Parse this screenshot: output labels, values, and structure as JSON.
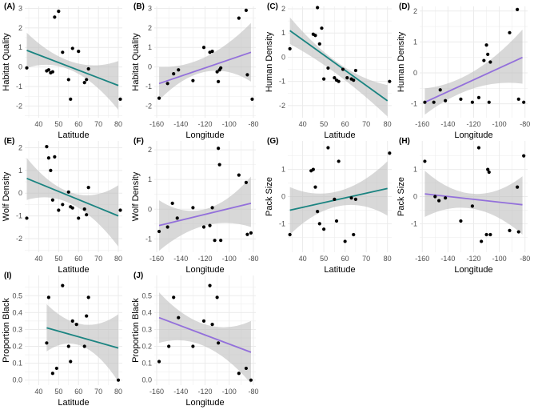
{
  "figure": {
    "band_color": "#bebebe",
    "point_color": "#000000",
    "grid_color": "#ebebeb"
  },
  "chart_data": [
    {
      "type": "scatter",
      "label": "(A)",
      "xlabel": "Latitude",
      "ylabel": "Habitat Quality",
      "xlim": [
        33,
        82
      ],
      "ylim": [
        -2.6,
        3.1
      ],
      "xticks": [
        40,
        50,
        60,
        70,
        80
      ],
      "xtick_labels": [
        "40",
        "50",
        "60",
        "70",
        "80"
      ],
      "yticks": [
        -2,
        -1,
        0,
        1,
        2,
        3
      ],
      "ytick_labels": [
        "-2",
        "-1",
        "0",
        "1",
        "2",
        "3"
      ],
      "line_color": "#1b8481",
      "fit": [
        [
          34,
          0.85
        ],
        [
          80,
          -0.95
        ]
      ],
      "band_start": [
        -0.05,
        1.75
      ],
      "band_mid": [
        -0.2,
        0.25
      ],
      "band_end": [
        -2.2,
        0.3
      ],
      "points": [
        [
          34,
          -0.05
        ],
        [
          44,
          -0.2
        ],
        [
          45,
          -0.15
        ],
        [
          46,
          -0.3
        ],
        [
          47,
          -0.25
        ],
        [
          48,
          2.55
        ],
        [
          50,
          2.85
        ],
        [
          52,
          0.75
        ],
        [
          55,
          -0.65
        ],
        [
          56,
          -1.65
        ],
        [
          57,
          0.95
        ],
        [
          60,
          0.8
        ],
        [
          63,
          -0.8
        ],
        [
          64,
          -0.65
        ],
        [
          65,
          -0.1
        ],
        [
          81,
          -1.65
        ]
      ]
    },
    {
      "type": "scatter",
      "label": "(B)",
      "xlabel": "Longitude",
      "ylabel": "Habitat Quality",
      "xlim": [
        -162,
        -78
      ],
      "ylim": [
        -2.6,
        3.1
      ],
      "xticks": [
        -160,
        -140,
        -120,
        -100,
        -80
      ],
      "xtick_labels": [
        "-160",
        "-140",
        "-120",
        "-100",
        "-80"
      ],
      "yticks": [
        -2,
        -1,
        0,
        1,
        2,
        3
      ],
      "ytick_labels": [
        "-2",
        "-1",
        "0",
        "1",
        "2",
        "3"
      ],
      "line_color": "#9370db",
      "fit": [
        [
          -158,
          -0.85
        ],
        [
          -82,
          0.75
        ]
      ],
      "band_start": [
        -1.7,
        0.0
      ],
      "band_mid": [
        -0.25,
        0.5
      ],
      "band_end": [
        -0.75,
        2.25
      ],
      "points": [
        [
          -158,
          -1.6
        ],
        [
          -151,
          -0.85
        ],
        [
          -146,
          -0.35
        ],
        [
          -142,
          -0.15
        ],
        [
          -130,
          -0.7
        ],
        [
          -121,
          1.0
        ],
        [
          -116,
          0.75
        ],
        [
          -114,
          0.8
        ],
        [
          -110,
          -0.25
        ],
        [
          -109,
          -0.75
        ],
        [
          -108,
          -0.15
        ],
        [
          -107,
          -0.05
        ],
        [
          -92,
          2.5
        ],
        [
          -86,
          2.9
        ],
        [
          -85,
          -0.4
        ],
        [
          -81,
          -1.65
        ]
      ]
    },
    {
      "type": "scatter",
      "label": "(C)",
      "xlabel": "Latitude",
      "ylabel": "Human Density",
      "xlim": [
        33,
        82
      ],
      "ylim": [
        -2.5,
        2.1
      ],
      "xticks": [
        40,
        50,
        60,
        70,
        80
      ],
      "xtick_labels": [
        "40",
        "50",
        "60",
        "70",
        "80"
      ],
      "yticks": [
        -2,
        -1,
        0,
        1,
        2
      ],
      "ytick_labels": [
        "-2",
        "-1",
        "0",
        "1",
        "2"
      ],
      "line_color": "#1b8481",
      "fit": [
        [
          34,
          1.1
        ],
        [
          80,
          -1.8
        ]
      ],
      "band_start": [
        0.55,
        1.65
      ],
      "band_mid": [
        -0.75,
        -0.25
      ],
      "band_end": [
        -2.45,
        -1.15
      ],
      "points": [
        [
          34,
          0.35
        ],
        [
          45,
          0.95
        ],
        [
          46,
          0.9
        ],
        [
          47,
          2.05
        ],
        [
          48,
          0.55
        ],
        [
          49,
          1.2
        ],
        [
          50,
          -0.9
        ],
        [
          52,
          -0.45
        ],
        [
          55,
          -0.85
        ],
        [
          56,
          -0.95
        ],
        [
          57,
          -1.0
        ],
        [
          59,
          -0.5
        ],
        [
          61,
          -0.85
        ],
        [
          63,
          -0.9
        ],
        [
          64,
          -0.95
        ],
        [
          65,
          -0.55
        ],
        [
          81,
          -1.0
        ]
      ]
    },
    {
      "type": "scatter",
      "label": "(D)",
      "xlabel": "Longitude",
      "ylabel": "Human Density",
      "xlim": [
        -162,
        -78
      ],
      "ylim": [
        -1.45,
        2.15
      ],
      "xticks": [
        -160,
        -140,
        -120,
        -100,
        -80
      ],
      "xtick_labels": [
        "-160",
        "-140",
        "-120",
        "-100",
        "-80"
      ],
      "yticks": [
        -1,
        0,
        1,
        2
      ],
      "ytick_labels": [
        "-1",
        "0",
        "1",
        "2"
      ],
      "line_color": "#9370db",
      "fit": [
        [
          -158,
          -0.95
        ],
        [
          -82,
          0.5
        ]
      ],
      "band_start": [
        -1.35,
        -0.5
      ],
      "band_mid": [
        -0.5,
        0.05
      ],
      "band_end": [
        -0.35,
        1.4
      ],
      "points": [
        [
          -158,
          -0.95
        ],
        [
          -151,
          -0.95
        ],
        [
          -146,
          -0.55
        ],
        [
          -142,
          -0.9
        ],
        [
          -130,
          -0.85
        ],
        [
          -121,
          -0.95
        ],
        [
          -116,
          -0.8
        ],
        [
          -112,
          0.4
        ],
        [
          -110,
          0.9
        ],
        [
          -109,
          0.6
        ],
        [
          -108,
          -0.95
        ],
        [
          -107,
          0.35
        ],
        [
          -92,
          1.3
        ],
        [
          -86,
          2.05
        ],
        [
          -85,
          -0.85
        ],
        [
          -81,
          -0.95
        ]
      ]
    },
    {
      "type": "scatter",
      "label": "(E)",
      "xlabel": "Latitude",
      "ylabel": "Wolf Density",
      "xlim": [
        33,
        82
      ],
      "ylim": [
        -2.6,
        2.3
      ],
      "xticks": [
        40,
        50,
        60,
        70,
        80
      ],
      "xtick_labels": [
        "40",
        "50",
        "60",
        "70",
        "80"
      ],
      "yticks": [
        -2,
        -1,
        0,
        1,
        2
      ],
      "ytick_labels": [
        "-2",
        "-1",
        "0",
        "1",
        "2"
      ],
      "line_color": "#1b8481",
      "fit": [
        [
          34,
          0.65
        ],
        [
          80,
          -1.0
        ]
      ],
      "band_start": [
        -0.3,
        1.55
      ],
      "band_mid": [
        -0.5,
        0.0
      ],
      "band_end": [
        -2.35,
        0.35
      ],
      "points": [
        [
          34,
          -1.1
        ],
        [
          44,
          2.05
        ],
        [
          45,
          1.55
        ],
        [
          46,
          1.0
        ],
        [
          47,
          -0.3
        ],
        [
          48,
          1.6
        ],
        [
          50,
          -0.75
        ],
        [
          52,
          -0.5
        ],
        [
          55,
          0.05
        ],
        [
          56,
          -0.6
        ],
        [
          57,
          -0.65
        ],
        [
          60,
          -1.1
        ],
        [
          63,
          -0.7
        ],
        [
          64,
          -0.95
        ],
        [
          65,
          0.25
        ],
        [
          81,
          -0.75
        ]
      ]
    },
    {
      "type": "scatter",
      "label": "(F)",
      "xlabel": "Longitude",
      "ylabel": "Wolf Density",
      "xlim": [
        -162,
        -78
      ],
      "ylim": [
        -1.45,
        2.3
      ],
      "xticks": [
        -160,
        -140,
        -120,
        -100,
        -80
      ],
      "xtick_labels": [
        "-160",
        "-140",
        "-120",
        "-100",
        "-80"
      ],
      "yticks": [
        -1,
        0,
        1,
        2
      ],
      "ytick_labels": [
        "-1",
        "0",
        "1",
        "2"
      ],
      "line_color": "#9370db",
      "fit": [
        [
          -158,
          -0.55
        ],
        [
          -82,
          0.2
        ]
      ],
      "band_start": [
        -1.4,
        0.3
      ],
      "band_mid": [
        -0.55,
        0.0
      ],
      "band_end": [
        -0.6,
        1.1
      ],
      "points": [
        [
          -158,
          -0.75
        ],
        [
          -151,
          -0.6
        ],
        [
          -147,
          0.2
        ],
        [
          -143,
          -0.3
        ],
        [
          -130,
          0.05
        ],
        [
          -121,
          -0.6
        ],
        [
          -116,
          -0.55
        ],
        [
          -114,
          0.05
        ],
        [
          -112,
          -1.05
        ],
        [
          -109,
          2.05
        ],
        [
          -108,
          1.5
        ],
        [
          -107,
          -1.05
        ],
        [
          -92,
          1.15
        ],
        [
          -86,
          0.9
        ],
        [
          -85,
          -0.85
        ],
        [
          -82,
          -0.8
        ]
      ]
    },
    {
      "type": "scatter",
      "label": "(G)",
      "xlabel": "Latitude",
      "ylabel": "Pack Size",
      "xlim": [
        33,
        82
      ],
      "ylim": [
        -2.05,
        2.05
      ],
      "xticks": [
        40,
        50,
        60,
        70,
        80
      ],
      "xtick_labels": [
        "40",
        "50",
        "60",
        "70",
        "80"
      ],
      "yticks": [
        -1,
        0,
        1
      ],
      "ytick_labels": [
        "-1",
        "0",
        "1"
      ],
      "line_color": "#1b8481",
      "fit": [
        [
          34,
          -0.5
        ],
        [
          80,
          0.3
        ]
      ],
      "band_start": [
        -1.4,
        0.35
      ],
      "band_mid": [
        -0.35,
        0.2
      ],
      "band_end": [
        -0.7,
        1.3
      ],
      "points": [
        [
          34,
          -1.4
        ],
        [
          44,
          0.95
        ],
        [
          45,
          1.0
        ],
        [
          46,
          0.35
        ],
        [
          47,
          -0.55
        ],
        [
          48,
          -1.0
        ],
        [
          50,
          -1.2
        ],
        [
          52,
          1.8
        ],
        [
          55,
          -0.1
        ],
        [
          56,
          -0.9
        ],
        [
          57,
          1.3
        ],
        [
          60,
          -1.65
        ],
        [
          63,
          -0.05
        ],
        [
          64,
          -1.4
        ],
        [
          65,
          -0.1
        ],
        [
          81,
          1.6
        ]
      ]
    },
    {
      "type": "scatter",
      "label": "(H)",
      "xlabel": "Longitude",
      "ylabel": "Pack Size",
      "xlim": [
        -162,
        -78
      ],
      "ylim": [
        -2.05,
        2.05
      ],
      "xticks": [
        -160,
        -140,
        -120,
        -100,
        -80
      ],
      "xtick_labels": [
        "-160",
        "-140",
        "-120",
        "-100",
        "-80"
      ],
      "yticks": [
        -1,
        0,
        1
      ],
      "ytick_labels": [
        "-1",
        "0",
        "1"
      ],
      "line_color": "#9370db",
      "fit": [
        [
          -158,
          0.1
        ],
        [
          -82,
          -0.3
        ]
      ],
      "band_start": [
        -0.75,
        0.95
      ],
      "band_mid": [
        -0.45,
        0.1
      ],
      "band_end": [
        -1.4,
        0.75
      ],
      "points": [
        [
          -158,
          1.3
        ],
        [
          -150,
          0.0
        ],
        [
          -147,
          -0.15
        ],
        [
          -142,
          -0.05
        ],
        [
          -130,
          -0.9
        ],
        [
          -121,
          -0.35
        ],
        [
          -116,
          1.8
        ],
        [
          -114,
          -1.65
        ],
        [
          -110,
          -1.4
        ],
        [
          -109,
          1.0
        ],
        [
          -108,
          0.9
        ],
        [
          -107,
          -1.4
        ],
        [
          -92,
          -1.25
        ],
        [
          -86,
          0.35
        ],
        [
          -85,
          -1.3
        ],
        [
          -81,
          1.5
        ]
      ]
    },
    {
      "type": "scatter",
      "label": "(I)",
      "xlabel": "Latitude",
      "ylabel": "Proportion Black",
      "xlim": [
        33,
        82
      ],
      "ylim": [
        -0.03,
        0.62
      ],
      "xticks": [
        40,
        50,
        60,
        70,
        80
      ],
      "xtick_labels": [
        "40",
        "50",
        "60",
        "70",
        "80"
      ],
      "yticks": [
        0.0,
        0.1,
        0.2,
        0.3,
        0.4,
        0.5
      ],
      "ytick_labels": [
        "0.0",
        "0.1",
        "0.2",
        "0.3",
        "0.4",
        "0.5"
      ],
      "line_color": "#1b8481",
      "fit": [
        [
          44,
          0.31
        ],
        [
          80,
          0.19
        ]
      ],
      "band_start": [
        0.17,
        0.45
      ],
      "band_mid": [
        0.2,
        0.33
      ],
      "band_end": [
        -0.01,
        0.39
      ],
      "points": [
        [
          44,
          0.22
        ],
        [
          45,
          0.49
        ],
        [
          47,
          0.04
        ],
        [
          49,
          0.07
        ],
        [
          52,
          0.56
        ],
        [
          55,
          0.2
        ],
        [
          56,
          0.11
        ],
        [
          57,
          0.35
        ],
        [
          59,
          0.33
        ],
        [
          63,
          0.2
        ],
        [
          64,
          0.38
        ],
        [
          65,
          0.49
        ],
        [
          80,
          0.0
        ]
      ]
    },
    {
      "type": "scatter",
      "label": "(J)",
      "xlabel": "Longitude",
      "ylabel": "Proportion Black",
      "xlim": [
        -162,
        -78
      ],
      "ylim": [
        -0.03,
        0.62
      ],
      "xticks": [
        -160,
        -140,
        -120,
        -100,
        -80
      ],
      "xtick_labels": [
        "-160",
        "-140",
        "-120",
        "-100",
        "-80"
      ],
      "yticks": [
        0.0,
        0.1,
        0.2,
        0.3,
        0.4,
        0.5
      ],
      "ytick_labels": [
        "0.0",
        "0.1",
        "0.2",
        "0.3",
        "0.4",
        "0.5"
      ],
      "line_color": "#9370db",
      "fit": [
        [
          -158,
          0.37
        ],
        [
          -82,
          0.165
        ]
      ],
      "band_start": [
        0.22,
        0.52
      ],
      "band_mid": [
        0.2,
        0.33
      ],
      "band_end": [
        -0.02,
        0.35
      ],
      "points": [
        [
          -158,
          0.11
        ],
        [
          -150,
          0.2
        ],
        [
          -146,
          0.49
        ],
        [
          -142,
          0.37
        ],
        [
          -130,
          0.2
        ],
        [
          -121,
          0.35
        ],
        [
          -116,
          0.56
        ],
        [
          -114,
          0.33
        ],
        [
          -110,
          0.49
        ],
        [
          -109,
          0.22
        ],
        [
          -92,
          0.04
        ],
        [
          -86,
          0.07
        ],
        [
          -82,
          0.0
        ]
      ]
    }
  ]
}
